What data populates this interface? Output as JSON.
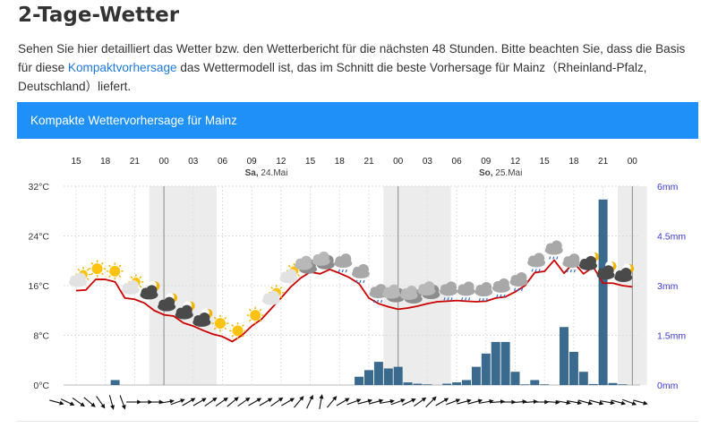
{
  "page": {
    "title": "2-Tage-Wetter",
    "intro_part1": "Sehen Sie hier detailliert das Wetter bzw. den Wetterbericht für die nächsten 48 Stunden. Bitte beachten Sie, dass die Basis für diese ",
    "intro_link": "Kompaktvorhersage",
    "intro_part2": " das Wettermodell ist, das im Schnitt die beste Vorhersage für Mainz（Rheinland-Pfalz, Deutschland）liefert.",
    "banner": "Kompakte Wettervorhersage für Mainz"
  },
  "colors": {
    "accent": "#1e90f7",
    "temperature_line": "#cc0000",
    "precip_bar": "#3a6a8e",
    "night_band": "#ececec",
    "right_axis_text": "#3a3ad0"
  },
  "chart_data": {
    "type": "line",
    "time_labels": [
      "15",
      "18",
      "21",
      "00",
      "03",
      "06",
      "09",
      "12",
      "15",
      "18",
      "21",
      "00",
      "03",
      "06",
      "09",
      "12",
      "15",
      "18",
      "21",
      "00"
    ],
    "day_labels": [
      {
        "label": "Sa, 24.Mai",
        "slot": 6.5
      },
      {
        "label": "So, 25.Mai",
        "slot": 14.5
      }
    ],
    "left_axis_ticks": [
      "32°C",
      "24°C",
      "16°C",
      "8°C",
      "0°C"
    ],
    "right_axis_ticks": [
      "6mm",
      "4.5mm",
      "3mm",
      "1.5mm",
      "0mm"
    ],
    "ylim_temperature": [
      0,
      32
    ],
    "ylim_precipitation": [
      0,
      6
    ],
    "grid": true,
    "temperature_hours_from_start": [
      0,
      1,
      2,
      3,
      4,
      5,
      6,
      7,
      8,
      9,
      10,
      11,
      12,
      13,
      14,
      15,
      16,
      17,
      18,
      19,
      20,
      21,
      22,
      23,
      24,
      25,
      26,
      27,
      28,
      29,
      30,
      31,
      32,
      33,
      34,
      35,
      36,
      37,
      38,
      39,
      40,
      41,
      42,
      43,
      44,
      45,
      46,
      47,
      48,
      49,
      50,
      51,
      52,
      53,
      54,
      55,
      56,
      57
    ],
    "temperature": [
      15.2,
      15.3,
      17,
      17,
      16.6,
      14,
      13.8,
      13.2,
      12,
      11.3,
      11.1,
      10,
      9.5,
      8.8,
      8.2,
      7.8,
      7,
      8,
      9.5,
      10.6,
      12.3,
      14,
      15.8,
      17.2,
      18.2,
      17.9,
      18.6,
      18,
      17.3,
      16.3,
      14,
      13.1,
      12.6,
      12.2,
      12.4,
      12.7,
      13.1,
      13.4,
      13.5,
      13.6,
      13.5,
      13.4,
      13.5,
      14,
      14.2,
      15,
      16,
      18.1,
      18.3,
      20.1,
      18,
      19.7,
      17.9,
      19,
      16.4,
      16.4,
      16,
      15.8
    ],
    "precipitation_hours_from_start": [
      4,
      29,
      30,
      31,
      32,
      33,
      34,
      35,
      36,
      38,
      39,
      40,
      41,
      42,
      43,
      44,
      45,
      46,
      47,
      48,
      50,
      51,
      52,
      53,
      54,
      55,
      56
    ],
    "precipitation": [
      0.15,
      0.25,
      0.45,
      0.7,
      0.5,
      0.55,
      0.08,
      0.04,
      0.02,
      0.04,
      0.08,
      0.15,
      0.55,
      0.95,
      1.3,
      1.3,
      0.4,
      0.02,
      0.15,
      0.02,
      1.75,
      1.0,
      0.4,
      0.03,
      5.6,
      0.06,
      0.02
    ],
    "weather_icons": [
      "partly-cloudy-sun-icon",
      "sun-icon",
      "sun-icon",
      "partly-cloudy-sun-icon",
      "cloud-moon-icon",
      "cloud-moon-icon",
      "cloud-moon-icon",
      "cloud-moon-icon",
      "sun-icon",
      "sun-icon",
      "sun-icon",
      "partly-cloudy-sun-icon",
      "partly-cloudy-sun-icon",
      "cloudy-icon",
      "cloudy-icon",
      "rain-cloud-icon",
      "rain-cloud-icon",
      "rain-cloud-icon",
      "cloudy-icon",
      "cloudy-icon",
      "cloudy-icon",
      "rain-cloud-icon",
      "rain-cloud-icon",
      "rain-cloud-icon",
      "rain-cloud-icon",
      "rain-cloud-icon",
      "rain-cloud-icon",
      "rain-cloud-icon",
      "rain-cloud-icon",
      "cloud-moon-icon",
      "cloud-moon-icon",
      "cloud-moon-icon"
    ],
    "wind_direction_deg": [
      15,
      25,
      35,
      40,
      55,
      75,
      70,
      0,
      0,
      0,
      -10,
      -20,
      -30,
      -30,
      -35,
      -35,
      -40,
      -35,
      -30,
      -30,
      -35,
      -30,
      -50,
      -65,
      -80,
      -50,
      -30,
      -20,
      -15,
      -15,
      -10,
      -20,
      -25,
      -35,
      -45,
      -30,
      -20,
      -15,
      -15,
      -10,
      -5,
      0,
      -5,
      -5,
      0,
      5,
      10,
      10,
      15,
      15,
      10,
      15,
      20,
      15
    ]
  }
}
